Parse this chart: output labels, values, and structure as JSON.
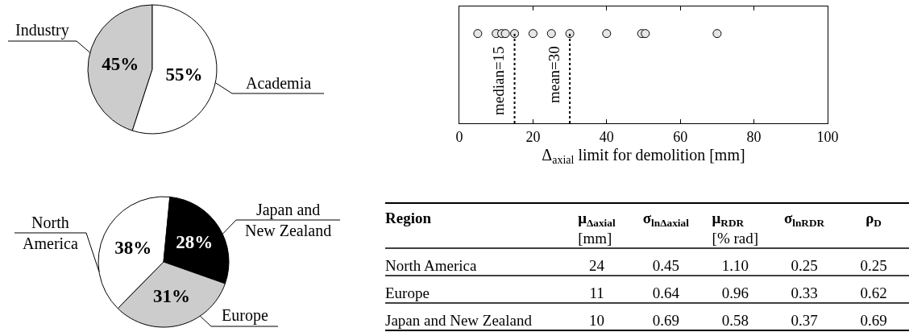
{
  "chart_data": [
    {
      "type": "pie",
      "categories": [
        "Industry",
        "Academia"
      ],
      "values": [
        45,
        55
      ],
      "colors": [
        "#cccccc",
        "#ffffff"
      ],
      "value_labels": [
        "45%",
        "55%"
      ]
    },
    {
      "type": "scatter",
      "orientation": "horizontal",
      "categories": [
        null
      ],
      "marker": "circle",
      "xlim": [
        0,
        100
      ],
      "xticks": [
        0,
        20,
        40,
        60,
        80,
        100
      ],
      "xlabel": "Δ$_{axial}$ limit for demolition [mm]",
      "series": [
        {
          "color": "#e6e6e6",
          "values": [
            5
          ]
        },
        {
          "color": "#e6e6e6",
          "values": [
            10
          ]
        },
        {
          "color": "#e6e6e6",
          "values": [
            11.5
          ]
        },
        {
          "color": "#e6e6e6",
          "values": [
            12.5
          ]
        },
        {
          "color": "#e6e6e6",
          "values": [
            15
          ]
        },
        {
          "color": "#e6e6e6",
          "values": [
            20
          ]
        },
        {
          "color": "#e6e6e6",
          "values": [
            25
          ]
        },
        {
          "color": "#e6e6e6",
          "values": [
            30
          ]
        },
        {
          "color": "#e6e6e6",
          "values": [
            40
          ]
        },
        {
          "color": "#e6e6e6",
          "values": [
            49.5
          ]
        },
        {
          "color": "#e6e6e6",
          "values": [
            50.5
          ]
        },
        {
          "color": "#e6e6e6",
          "values": [
            70
          ]
        }
      ],
      "ref_lines": [
        {
          "axis": "x",
          "value": 15,
          "label": "median=15",
          "line_style": "dotted",
          "color": "#000000"
        },
        {
          "axis": "x",
          "value": 30,
          "label": "mean=30",
          "line_style": "dotted",
          "color": "#000000"
        }
      ]
    },
    {
      "type": "pie",
      "categories": [
        "North America",
        "Japan and New Zealand",
        "Europe"
      ],
      "values": [
        38,
        28,
        31
      ],
      "colors": [
        "#ffffff",
        "#000000",
        "#cccccc"
      ],
      "value_labels": [
        "38%",
        "28%",
        "31%"
      ]
    },
    {
      "type": "other",
      "ylabel": "Region",
      "categories": [
        "μ$_{Δaxial}$\n[mm]",
        "σ$_{lnΔaxial}$",
        "μ$_{RDR}$\n[% rad]",
        "σ$_{lnRDR}$",
        "ρ$_{D}$"
      ],
      "y_categories": [
        "North America",
        "Europe",
        "Japan and New Zealand"
      ],
      "cell_labels": [
        [
          "24",
          "0.45",
          "1.10",
          "0.25",
          "0.25"
        ],
        [
          "11",
          "0.64",
          "0.96",
          "0.33",
          "0.62"
        ],
        [
          "10",
          "0.69",
          "0.58",
          "0.37",
          "0.69"
        ]
      ]
    }
  ]
}
